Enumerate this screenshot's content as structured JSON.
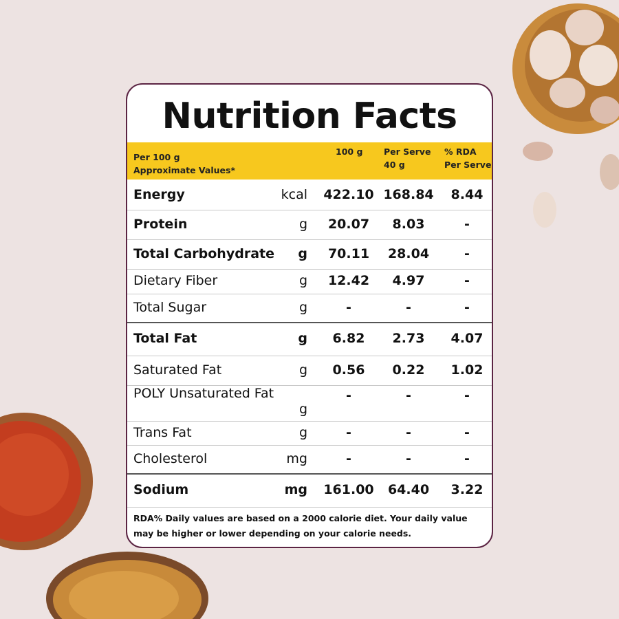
{
  "title": "Nutrition Facts",
  "table": {
    "header": [
      [
        "Per 100 g",
        "Approximate Values*"
      ],
      [
        "100 g"
      ],
      [
        "Per Serve",
        "40 g"
      ],
      [
        "% RDA",
        "Per Serve"
      ]
    ],
    "rows": [
      {
        "name": "Energy",
        "unit": "kcal",
        "per_100g": "422.10",
        "per_serve": "168.84",
        "rda": "8.44"
      },
      {
        "name": "Protein",
        "unit": "g",
        "per_100g": "20.07",
        "per_serve": "8.03",
        "rda": "-"
      },
      {
        "name": "Total Carbohydrate",
        "unit": "g",
        "per_100g": "70.11",
        "per_serve": "28.04",
        "rda": "-"
      },
      {
        "name": "Dietary Fiber",
        "unit": "g",
        "per_100g": "12.42",
        "per_serve": "4.97",
        "rda": "-"
      },
      {
        "name": "Total Sugar",
        "unit": "g",
        "per_100g": "-",
        "per_serve": "-",
        "rda": "-"
      },
      {
        "name": "Total Fat",
        "unit": "g",
        "per_100g": "6.82",
        "per_serve": "2.73",
        "rda": "4.07"
      },
      {
        "name": "Saturated Fat",
        "unit": "g",
        "per_100g": "0.56",
        "per_serve": "0.22",
        "rda": "1.02"
      },
      {
        "name": "POLY Unsaturated Fat",
        "unit": "g",
        "per_100g": "-",
        "per_serve": "-",
        "rda": "-"
      },
      {
        "name": "Trans Fat",
        "unit": "g",
        "per_100g": "-",
        "per_serve": "-",
        "rda": "-"
      },
      {
        "name": "Cholesterol",
        "unit": "mg",
        "per_100g": "-",
        "per_serve": "-",
        "rda": "-"
      },
      {
        "name": "Sodium",
        "unit": "mg",
        "per_100g": "161.00",
        "per_serve": "64.40",
        "rda": "3.22"
      }
    ]
  },
  "footnote": "RDA% Daily values are based on a 2000 calorie diet. Your daily value may be higher or lower depending on your calorie needs."
}
